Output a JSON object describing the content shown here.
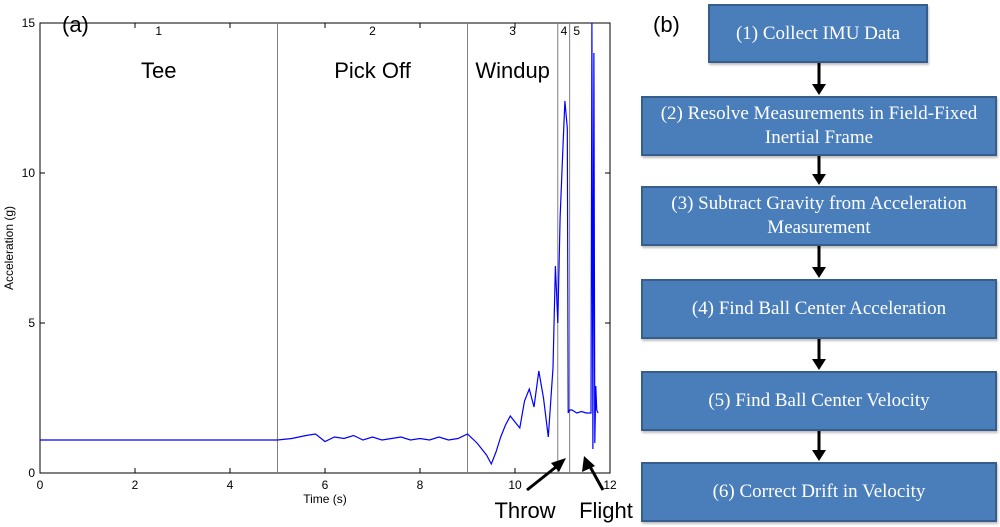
{
  "panel_a_label": "(a)",
  "panel_b_label": "(b)",
  "chart_data": {
    "type": "line",
    "title": "",
    "xlabel": "Time (s)",
    "ylabel": "Acceleration (g)",
    "xlim": [
      0,
      12
    ],
    "ylim": [
      0,
      15
    ],
    "xticks": [
      0,
      2,
      4,
      6,
      8,
      10,
      12
    ],
    "yticks": [
      0,
      5,
      10,
      15
    ],
    "grid": false,
    "line_color": "#0000ff",
    "divider_color": "#808080",
    "phase_boundaries": [
      5,
      9,
      10.9,
      11.15
    ],
    "phases": [
      {
        "number": "1",
        "name": "Tee",
        "x_center": 2.5
      },
      {
        "number": "2",
        "name": "Pick Off",
        "x_center": 7
      },
      {
        "number": "3",
        "name": "Windup",
        "x_center": 9.95
      },
      {
        "number": "4",
        "name": "",
        "x_center": 11.03
      },
      {
        "number": "5",
        "name": "",
        "x_center": 11.3
      }
    ],
    "annotations": [
      {
        "text": "Throw",
        "x": 10.95,
        "y": 0.5
      },
      {
        "text": "Flight",
        "x": 11.2,
        "y": 0.7
      }
    ],
    "series": [
      {
        "x": [
          0,
          1,
          2,
          3,
          4,
          5,
          5.3,
          5.6,
          5.8,
          6.0,
          6.2,
          6.4,
          6.6,
          6.8,
          7.0,
          7.2,
          7.4,
          7.6,
          7.8,
          8.0,
          8.2,
          8.4,
          8.6,
          8.8,
          9.0,
          9.2,
          9.4,
          9.5,
          9.6,
          9.7,
          9.8,
          9.9,
          10.0,
          10.1,
          10.2,
          10.3,
          10.4,
          10.5,
          10.6,
          10.7,
          10.8,
          10.85,
          10.9,
          10.95,
          11.0,
          11.05,
          11.1,
          11.12,
          11.15,
          11.2,
          11.3,
          11.4,
          11.5,
          11.6,
          11.62,
          11.64,
          11.66,
          11.68,
          11.7,
          11.72,
          11.75
        ],
        "y": [
          1.1,
          1.1,
          1.1,
          1.1,
          1.1,
          1.1,
          1.15,
          1.25,
          1.3,
          1.05,
          1.2,
          1.15,
          1.25,
          1.1,
          1.2,
          1.1,
          1.15,
          1.2,
          1.1,
          1.15,
          1.1,
          1.2,
          1.1,
          1.15,
          1.3,
          1.0,
          0.6,
          0.3,
          0.7,
          1.2,
          1.6,
          1.9,
          1.7,
          1.5,
          2.4,
          2.8,
          2.2,
          3.4,
          2.5,
          1.2,
          3.5,
          6.9,
          5.0,
          8.5,
          10.5,
          12.4,
          11.5,
          2.0,
          2.1,
          2.1,
          2.0,
          2.05,
          2.0,
          2.0,
          15,
          0.8,
          14,
          1.0,
          2.9,
          2.1,
          2.0
        ]
      }
    ]
  },
  "flowchart": {
    "steps": [
      "(1) Collect IMU Data",
      "(2) Resolve Measurements in Field-Fixed Inertial Frame",
      "(3) Subtract Gravity from Acceleration Measurement",
      "(4) Find Ball Center Acceleration",
      "(5) Find Ball Center Velocity",
      "(6) Correct Drift in Velocity"
    ],
    "box_color": "#4a7ebb",
    "border_color": "#375d8a",
    "text_color": "#ffffff"
  }
}
